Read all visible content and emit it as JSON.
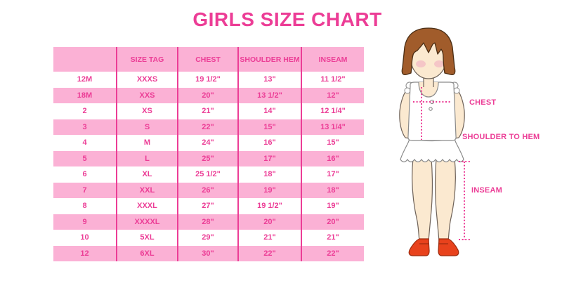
{
  "title": "GIRLS SIZE CHART",
  "colors": {
    "accent_pink": "#EC3D96",
    "row_pink": "#FBB1D5",
    "hair_brown": "#A15C2B",
    "skin": "#FBE9D0",
    "shoe_red": "#E8421C"
  },
  "chart_data": {
    "type": "table",
    "title": "GIRLS SIZE CHART",
    "columns": [
      "",
      "SIZE TAG",
      "CHEST",
      "SHOULDER HEM",
      "INSEAM"
    ],
    "rows": [
      [
        "12M",
        "XXXS",
        "19 1/2\"",
        "13\"",
        "11 1/2\""
      ],
      [
        "18M",
        "XXS",
        "20\"",
        "13 1/2\"",
        "12\""
      ],
      [
        "2",
        "XS",
        "21\"",
        "14\"",
        "12 1/4\""
      ],
      [
        "3",
        "S",
        "22\"",
        "15\"",
        "13 1/4\""
      ],
      [
        "4",
        "M",
        "24\"",
        "16\"",
        "15\""
      ],
      [
        "5",
        "L",
        "25\"",
        "17\"",
        "16\""
      ],
      [
        "6",
        "XL",
        "25 1/2\"",
        "18\"",
        "17\""
      ],
      [
        "7",
        "XXL",
        "26\"",
        "19\"",
        "18\""
      ],
      [
        "8",
        "XXXL",
        "27\"",
        "19 1/2\"",
        "19\""
      ],
      [
        "9",
        "XXXXL",
        "28\"",
        "20\"",
        "20\""
      ],
      [
        "10",
        "5XL",
        "29\"",
        "21\"",
        "21\""
      ],
      [
        "12",
        "6XL",
        "30\"",
        "22\"",
        "22\""
      ]
    ],
    "layout_hints": {
      "alternating_row_shading": true,
      "shaded_rows": [
        "header",
        "18M",
        "3",
        "5",
        "7",
        "9",
        "12"
      ]
    }
  },
  "figure": {
    "labels": {
      "chest": "CHEST",
      "shoulder_to_hem": "SHOULDER TO HEM",
      "inseam": "INSEAM"
    }
  }
}
